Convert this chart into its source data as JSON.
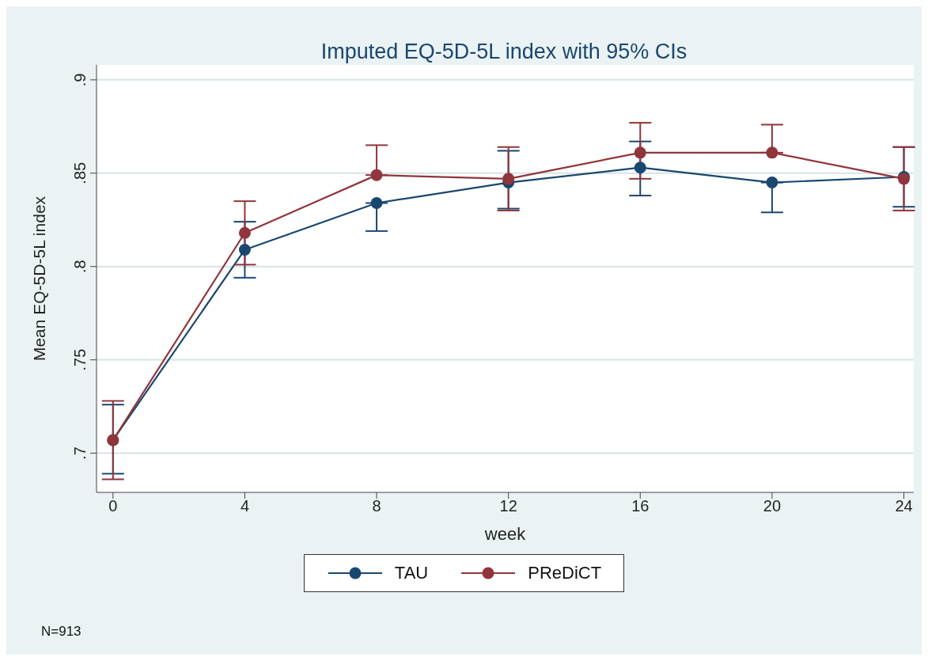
{
  "chart_data": {
    "type": "line",
    "title": "Imputed EQ-5D-5L index with 95% CIs",
    "xlabel": "week",
    "ylabel": "Mean EQ-5D-5L index",
    "x": [
      0,
      4,
      8,
      12,
      16,
      20,
      24
    ],
    "series": [
      {
        "name": "TAU",
        "color": "#1a476f",
        "values": [
          0.707,
          0.809,
          0.834,
          0.845,
          0.853,
          0.845,
          0.848
        ],
        "errors": [
          [
            0.689,
            0.726
          ],
          [
            0.794,
            0.824
          ],
          [
            0.819,
            0.834
          ],
          [
            0.831,
            0.862
          ],
          [
            0.838,
            0.867
          ],
          [
            0.829,
            0.845
          ],
          [
            0.832,
            0.864
          ]
        ]
      },
      {
        "name": "PReDiCT",
        "color": "#90353b",
        "values": [
          0.707,
          0.818,
          0.849,
          0.847,
          0.861,
          0.861,
          0.847
        ],
        "errors": [
          [
            0.686,
            0.728
          ],
          [
            0.801,
            0.835
          ],
          [
            0.849,
            0.865
          ],
          [
            0.83,
            0.864
          ],
          [
            0.847,
            0.877
          ],
          [
            0.861,
            0.876
          ],
          [
            0.83,
            0.864
          ]
        ]
      }
    ],
    "xlim": [
      -0.5,
      24.3
    ],
    "xticks": [
      0,
      4,
      8,
      12,
      16,
      20,
      24
    ],
    "ylim": [
      0.679,
      0.908
    ],
    "yticks": [
      {
        "value": 0.7,
        "label": ".7"
      },
      {
        "value": 0.75,
        "label": ".75"
      },
      {
        "value": 0.8,
        "label": ".8"
      },
      {
        "value": 0.85,
        "label": ".85"
      },
      {
        "value": 0.9,
        "label": ".9"
      }
    ],
    "grid": "y",
    "legend": "bottom",
    "marker": "circle",
    "line_style": "solid",
    "annotations": [
      "N=913"
    ]
  }
}
